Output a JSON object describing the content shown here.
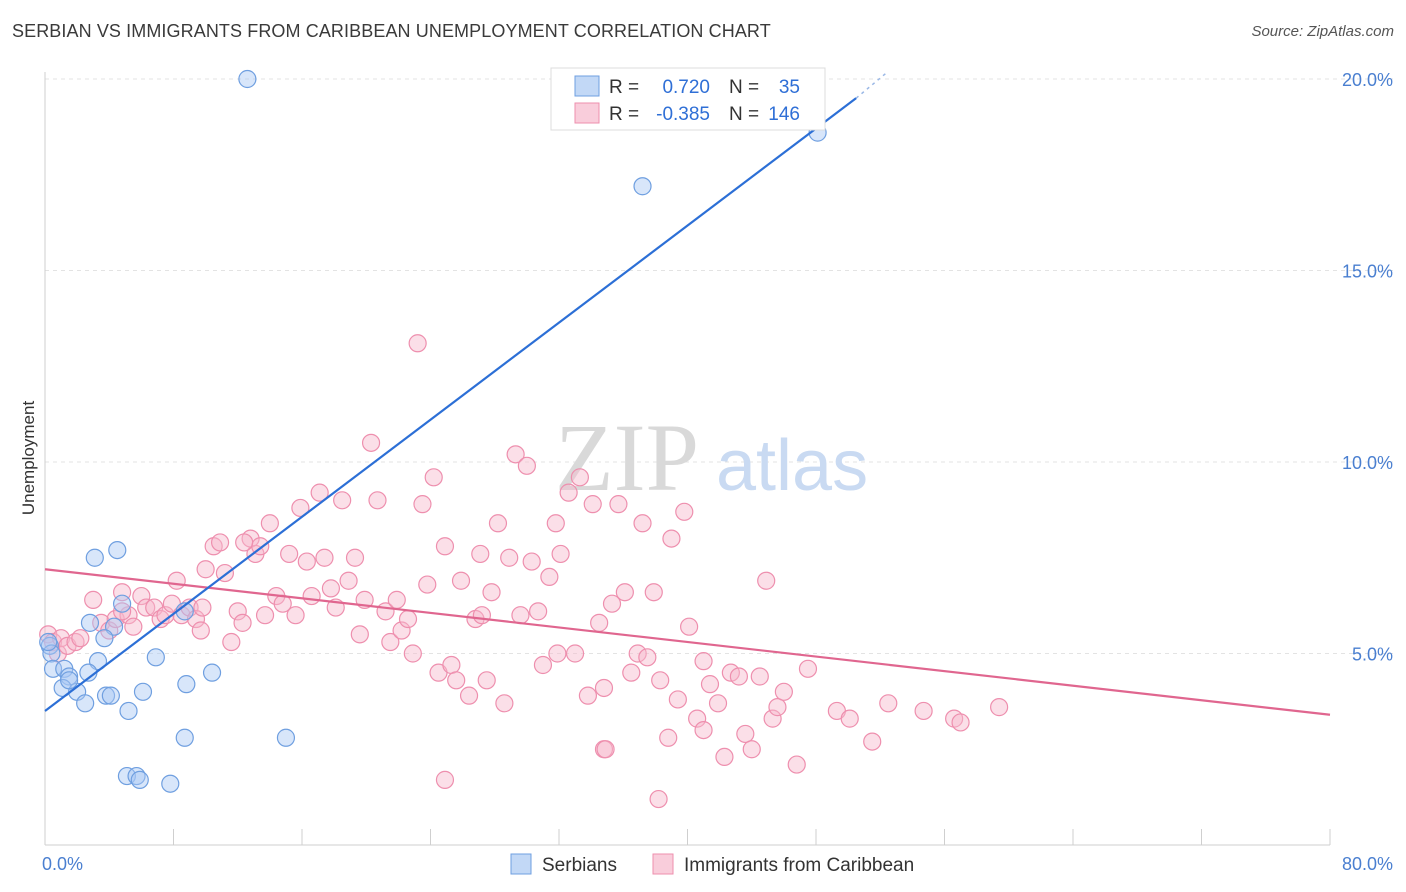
{
  "title": "SERBIAN VS IMMIGRANTS FROM CARIBBEAN UNEMPLOYMENT CORRELATION CHART",
  "source": "Source: ZipAtlas.com",
  "watermark": {
    "zip": "ZIP",
    "atlas": "atlas"
  },
  "colors": {
    "serbians_fill": "#a9c8f3",
    "serbians_stroke": "#6f9fe0",
    "serbians_line": "#2c6fd6",
    "caribbean_fill": "#f7b8cb",
    "caribbean_stroke": "#ee8fae",
    "caribbean_line": "#e0668f",
    "tick_label": "#4a7fd0",
    "grid": "#e3e3e3"
  },
  "legend": {
    "rows": [
      {
        "r_label": "R =",
        "r_value": "0.720",
        "n_label": "N =",
        "n_value": "35"
      },
      {
        "r_label": "R =",
        "r_value": "-0.385",
        "n_label": "N =",
        "n_value": "146"
      }
    ]
  },
  "chart_data": {
    "type": "scatter",
    "title": "SERBIAN VS IMMIGRANTS FROM CARIBBEAN UNEMPLOYMENT CORRELATION CHART",
    "xlabel": "",
    "ylabel": "Unemployment",
    "xlim": [
      0,
      80
    ],
    "ylim": [
      0,
      20
    ],
    "x_tick_labels": [
      "0.0%",
      "80.0%"
    ],
    "y_ticks": [
      5,
      10,
      15,
      20
    ],
    "y_tick_labels": [
      "5.0%",
      "10.0%",
      "15.0%",
      "20.0%"
    ],
    "grid": true,
    "legend_position": "top-center",
    "series": [
      {
        "name": "Serbians",
        "r": 0.72,
        "n": 35,
        "trend": [
          [
            0,
            3.5
          ],
          [
            50.5,
            19.5
          ]
        ],
        "trend_dashed": [
          [
            50.5,
            19.5
          ],
          [
            52.5,
            20.2
          ]
        ],
        "points": [
          [
            12.6,
            20.0
          ],
          [
            48.1,
            18.6
          ],
          [
            37.2,
            17.2
          ],
          [
            3.1,
            7.5
          ],
          [
            4.5,
            7.7
          ],
          [
            4.8,
            6.3
          ],
          [
            2.8,
            5.8
          ],
          [
            4.3,
            5.7
          ],
          [
            3.7,
            5.4
          ],
          [
            0.3,
            5.2
          ],
          [
            0.4,
            5.0
          ],
          [
            0.5,
            4.6
          ],
          [
            1.2,
            4.6
          ],
          [
            1.5,
            4.4
          ],
          [
            3.3,
            4.8
          ],
          [
            6.9,
            4.9
          ],
          [
            8.7,
            6.1
          ],
          [
            10.4,
            4.5
          ],
          [
            1.1,
            4.1
          ],
          [
            2.0,
            4.0
          ],
          [
            1.5,
            4.3
          ],
          [
            2.7,
            4.5
          ],
          [
            3.8,
            3.9
          ],
          [
            4.1,
            3.9
          ],
          [
            6.1,
            4.0
          ],
          [
            8.8,
            4.2
          ],
          [
            2.5,
            3.7
          ],
          [
            5.2,
            3.5
          ],
          [
            8.7,
            2.8
          ],
          [
            15.0,
            2.8
          ],
          [
            5.1,
            1.8
          ],
          [
            5.7,
            1.8
          ],
          [
            5.9,
            1.7
          ],
          [
            7.8,
            1.6
          ],
          [
            0.2,
            5.3
          ]
        ]
      },
      {
        "name": "Immigrants from Caribbean",
        "r": -0.385,
        "n": 146,
        "trend": [
          [
            0,
            7.2
          ],
          [
            80,
            3.4
          ]
        ],
        "points": [
          [
            0.2,
            5.5
          ],
          [
            0.5,
            5.3
          ],
          [
            0.8,
            5.0
          ],
          [
            1.0,
            5.4
          ],
          [
            1.4,
            5.2
          ],
          [
            1.9,
            5.3
          ],
          [
            2.2,
            5.4
          ],
          [
            3.0,
            6.4
          ],
          [
            3.5,
            5.8
          ],
          [
            4.0,
            5.6
          ],
          [
            4.4,
            5.9
          ],
          [
            4.8,
            6.6
          ],
          [
            5.2,
            6.0
          ],
          [
            5.5,
            5.7
          ],
          [
            6.0,
            6.5
          ],
          [
            6.3,
            6.2
          ],
          [
            6.8,
            6.2
          ],
          [
            7.2,
            5.9
          ],
          [
            7.5,
            6.0
          ],
          [
            7.9,
            6.3
          ],
          [
            8.2,
            6.9
          ],
          [
            8.5,
            6.0
          ],
          [
            9.0,
            6.2
          ],
          [
            9.4,
            5.9
          ],
          [
            9.7,
            5.6
          ],
          [
            10.0,
            7.2
          ],
          [
            10.5,
            7.8
          ],
          [
            10.9,
            7.9
          ],
          [
            11.2,
            7.1
          ],
          [
            11.6,
            5.3
          ],
          [
            12.0,
            6.1
          ],
          [
            12.3,
            5.8
          ],
          [
            12.8,
            8.0
          ],
          [
            13.1,
            7.6
          ],
          [
            13.4,
            7.8
          ],
          [
            13.7,
            6.0
          ],
          [
            14.0,
            8.4
          ],
          [
            14.4,
            6.5
          ],
          [
            14.8,
            6.3
          ],
          [
            15.2,
            7.6
          ],
          [
            15.6,
            6.0
          ],
          [
            15.9,
            8.8
          ],
          [
            16.3,
            7.4
          ],
          [
            16.6,
            6.5
          ],
          [
            17.1,
            9.2
          ],
          [
            17.4,
            7.5
          ],
          [
            17.8,
            6.7
          ],
          [
            18.1,
            6.2
          ],
          [
            18.5,
            9.0
          ],
          [
            18.9,
            6.9
          ],
          [
            19.3,
            7.5
          ],
          [
            19.6,
            5.5
          ],
          [
            19.9,
            6.4
          ],
          [
            20.3,
            10.5
          ],
          [
            20.7,
            9.0
          ],
          [
            21.2,
            6.1
          ],
          [
            21.5,
            5.3
          ],
          [
            21.9,
            6.4
          ],
          [
            22.2,
            5.6
          ],
          [
            22.6,
            5.9
          ],
          [
            22.9,
            5.0
          ],
          [
            23.2,
            13.1
          ],
          [
            23.5,
            8.9
          ],
          [
            23.8,
            6.8
          ],
          [
            24.2,
            9.6
          ],
          [
            24.5,
            4.5
          ],
          [
            24.9,
            7.8
          ],
          [
            25.3,
            4.7
          ],
          [
            25.6,
            4.3
          ],
          [
            25.9,
            6.9
          ],
          [
            26.4,
            3.9
          ],
          [
            26.8,
            5.9
          ],
          [
            27.1,
            7.6
          ],
          [
            27.5,
            4.3
          ],
          [
            27.8,
            6.6
          ],
          [
            28.2,
            8.4
          ],
          [
            28.6,
            3.7
          ],
          [
            28.9,
            7.5
          ],
          [
            29.3,
            10.2
          ],
          [
            29.6,
            6.0
          ],
          [
            30.0,
            9.9
          ],
          [
            30.3,
            7.4
          ],
          [
            30.7,
            6.1
          ],
          [
            31.0,
            4.7
          ],
          [
            31.4,
            7.0
          ],
          [
            31.8,
            8.4
          ],
          [
            32.1,
            7.6
          ],
          [
            32.6,
            9.2
          ],
          [
            33.0,
            5.0
          ],
          [
            33.3,
            9.6
          ],
          [
            33.8,
            3.9
          ],
          [
            34.1,
            8.9
          ],
          [
            34.5,
            5.8
          ],
          [
            34.8,
            4.1
          ],
          [
            35.3,
            6.3
          ],
          [
            35.7,
            8.9
          ],
          [
            36.1,
            6.6
          ],
          [
            36.5,
            4.5
          ],
          [
            36.9,
            5.0
          ],
          [
            37.2,
            8.4
          ],
          [
            37.5,
            4.9
          ],
          [
            37.9,
            6.6
          ],
          [
            38.3,
            4.3
          ],
          [
            38.8,
            2.8
          ],
          [
            39.0,
            8.0
          ],
          [
            39.4,
            3.8
          ],
          [
            39.8,
            8.7
          ],
          [
            40.1,
            5.7
          ],
          [
            40.6,
            3.3
          ],
          [
            41.0,
            3.0
          ],
          [
            41.4,
            4.2
          ],
          [
            41.9,
            3.7
          ],
          [
            42.3,
            2.3
          ],
          [
            42.7,
            4.5
          ],
          [
            43.2,
            4.4
          ],
          [
            43.6,
            2.9
          ],
          [
            44.0,
            2.5
          ],
          [
            44.5,
            4.4
          ],
          [
            44.9,
            6.9
          ],
          [
            45.3,
            3.3
          ],
          [
            45.6,
            3.6
          ],
          [
            46.0,
            4.0
          ],
          [
            46.8,
            2.1
          ],
          [
            47.5,
            4.6
          ],
          [
            49.3,
            3.5
          ],
          [
            50.1,
            3.3
          ],
          [
            51.5,
            2.7
          ],
          [
            52.5,
            3.7
          ],
          [
            54.7,
            3.5
          ],
          [
            56.6,
            3.3
          ],
          [
            57.0,
            3.2
          ],
          [
            59.4,
            3.6
          ],
          [
            38.2,
            1.2
          ],
          [
            34.8,
            2.5
          ],
          [
            34.9,
            2.5
          ],
          [
            24.9,
            1.7
          ],
          [
            12.4,
            7.9
          ],
          [
            4.8,
            6.1
          ],
          [
            9.8,
            6.2
          ],
          [
            27.2,
            6.0
          ],
          [
            31.9,
            5.0
          ],
          [
            41.0,
            4.8
          ]
        ]
      }
    ]
  },
  "bottom_legend": [
    "Serbians",
    "Immigrants from Caribbean"
  ]
}
